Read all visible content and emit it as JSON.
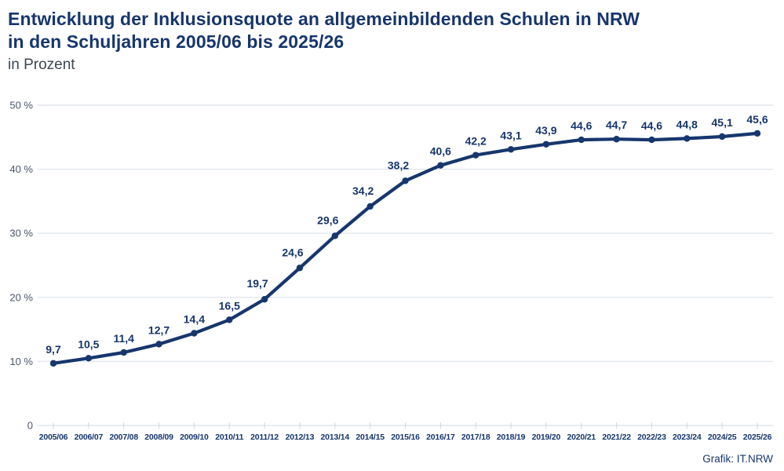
{
  "header": {
    "title_line1": "Entwicklung der Inklusionsquote an allgemeinbildenden Schulen in NRW",
    "title_line2": "in den Schuljahren 2005/06 bis 2025/26",
    "subtitle": "in Prozent"
  },
  "footer": {
    "credit": "Grafik: IT.NRW"
  },
  "colors": {
    "line": "#17366d",
    "point": "#17366d",
    "data_label": "#17366d",
    "x_axis_label": "#17366d",
    "y_axis_label": "#4a5768",
    "gridline": "#e1e6ee",
    "tick": "#cfd6e0",
    "background": "#ffffff"
  },
  "chart_data": {
    "type": "line",
    "title": "Entwicklung der Inklusionsquote an allgemeinbildenden Schulen in NRW in den Schuljahren 2005/06 bis 2025/26",
    "subtitle": "in Prozent",
    "xlabel": "",
    "ylabel": "in Prozent",
    "ylim": [
      0,
      50
    ],
    "grid": true,
    "legend": "none",
    "categories": [
      "2005/06",
      "2006/07",
      "2007/08",
      "2008/09",
      "2009/10",
      "2010/11",
      "2011/12",
      "2012/13",
      "2013/14",
      "2014/15",
      "2015/16",
      "2016/17",
      "2017/18",
      "2018/19",
      "2019/20",
      "2020/21",
      "2021/22",
      "2022/23",
      "2023/24",
      "2024/25",
      "2025/26"
    ],
    "values": [
      9.7,
      10.5,
      11.4,
      12.7,
      14.4,
      16.5,
      19.7,
      24.6,
      29.6,
      34.2,
      38.2,
      40.6,
      42.2,
      43.1,
      43.9,
      44.6,
      44.7,
      44.6,
      44.8,
      45.1,
      45.6
    ],
    "value_labels": [
      "9,7",
      "10,5",
      "11,4",
      "12,7",
      "14,4",
      "16,5",
      "19,7",
      "24,6",
      "29,6",
      "34,2",
      "38,2",
      "40,6",
      "42,2",
      "43,1",
      "43,9",
      "44,6",
      "44,7",
      "44,6",
      "44,8",
      "45,1",
      "45,6"
    ],
    "y_ticks": [
      {
        "value": 0,
        "label": "0"
      },
      {
        "value": 10,
        "label": "10 %"
      },
      {
        "value": 20,
        "label": "20 %"
      },
      {
        "value": 30,
        "label": "30 %"
      },
      {
        "value": 40,
        "label": "40 %"
      },
      {
        "value": 50,
        "label": "50 %"
      }
    ]
  }
}
